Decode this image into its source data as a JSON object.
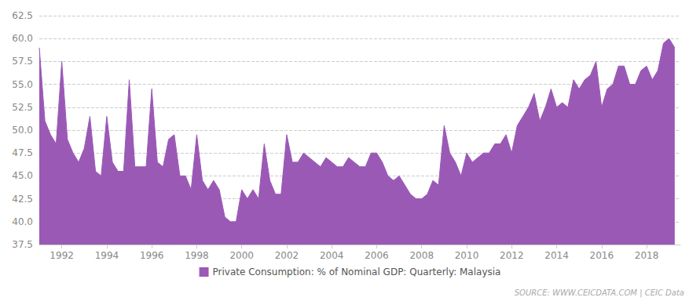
{
  "chart_data": {
    "type": "area",
    "x": [
      1991,
      1991.25,
      1991.5,
      1991.75,
      1992,
      1992.25,
      1992.5,
      1992.75,
      1993,
      1993.25,
      1993.5,
      1993.75,
      1994,
      1994.25,
      1994.5,
      1994.75,
      1995,
      1995.25,
      1995.5,
      1995.75,
      1996,
      1996.25,
      1996.5,
      1996.75,
      1997,
      1997.25,
      1997.5,
      1997.75,
      1998,
      1998.25,
      1998.5,
      1998.75,
      1999,
      1999.25,
      1999.5,
      1999.75,
      2000,
      2000.25,
      2000.5,
      2000.75,
      2001,
      2001.25,
      2001.5,
      2001.75,
      2002,
      2002.25,
      2002.5,
      2002.75,
      2003,
      2003.25,
      2003.5,
      2003.75,
      2004,
      2004.25,
      2004.5,
      2004.75,
      2005,
      2005.25,
      2005.5,
      2005.75,
      2006,
      2006.25,
      2006.5,
      2006.75,
      2007,
      2007.25,
      2007.5,
      2007.75,
      2008,
      2008.25,
      2008.5,
      2008.75,
      2009,
      2009.25,
      2009.5,
      2009.75,
      2010,
      2010.25,
      2010.5,
      2010.75,
      2011,
      2011.25,
      2011.5,
      2011.75,
      2012,
      2012.25,
      2012.5,
      2012.75,
      2013,
      2013.25,
      2013.5,
      2013.75,
      2014,
      2014.25,
      2014.5,
      2014.75,
      2015,
      2015.25,
      2015.5,
      2015.75,
      2016,
      2016.25,
      2016.5,
      2016.75,
      2017,
      2017.25,
      2017.5,
      2017.75,
      2018,
      2018.25,
      2018.5,
      2018.75,
      2019,
      2019.25
    ],
    "series": [
      {
        "name": "Private Consumption: % of Nominal GDP: Quarterly: Malaysia",
        "color": "#9B59B6",
        "values": [
          59.0,
          51.0,
          49.5,
          48.5,
          57.5,
          49.0,
          47.5,
          46.5,
          48.0,
          51.5,
          45.5,
          45.0,
          51.5,
          46.5,
          45.5,
          45.5,
          55.5,
          46.0,
          46.0,
          46.0,
          54.5,
          46.5,
          46.0,
          49.0,
          49.5,
          45.0,
          45.0,
          43.5,
          49.5,
          44.5,
          43.5,
          44.5,
          43.5,
          40.5,
          40.0,
          40.0,
          43.5,
          42.5,
          43.5,
          42.5,
          48.5,
          44.5,
          43.0,
          43.0,
          49.5,
          46.5,
          46.5,
          47.5,
          47.0,
          46.5,
          46.0,
          47.0,
          46.5,
          46.0,
          46.0,
          47.0,
          46.5,
          46.0,
          46.0,
          47.5,
          47.5,
          46.5,
          45.0,
          44.5,
          45.0,
          44.0,
          43.0,
          42.5,
          42.5,
          43.0,
          44.5,
          44.0,
          50.5,
          47.5,
          46.5,
          45.0,
          47.5,
          46.5,
          47.0,
          47.5,
          47.5,
          48.5,
          48.5,
          49.5,
          47.5,
          50.5,
          51.5,
          52.5,
          54.0,
          51.0,
          52.5,
          54.5,
          52.5,
          53.0,
          52.5,
          55.5,
          54.5,
          55.5,
          56.0,
          57.5,
          52.5,
          54.5,
          55.0,
          57.0,
          57.0,
          55.0,
          55.0,
          56.5,
          57.0,
          55.5,
          56.5,
          59.5,
          60.0,
          59.0
        ]
      }
    ],
    "xlim": [
      1991,
      2019.5
    ],
    "xticks": [
      1992,
      1994,
      1996,
      1998,
      2000,
      2002,
      2004,
      2006,
      2008,
      2010,
      2012,
      2014,
      2016,
      2018
    ],
    "ylim": [
      37.5,
      62.5
    ],
    "yticks": [
      37.5,
      {
        "value": 40,
        "label": "40.0"
      },
      42.5,
      {
        "value": 45,
        "label": "45.0"
      },
      47.5,
      {
        "value": 50,
        "label": "50.0"
      },
      52.5,
      {
        "value": 55,
        "label": "55.0"
      },
      57.5,
      {
        "value": 60,
        "label": "60.0"
      },
      62.5
    ],
    "grid": true,
    "legend": "bottom",
    "annotations": [
      "SOURCE: WWW.CEICDATA.COM | CEIC Data"
    ]
  }
}
